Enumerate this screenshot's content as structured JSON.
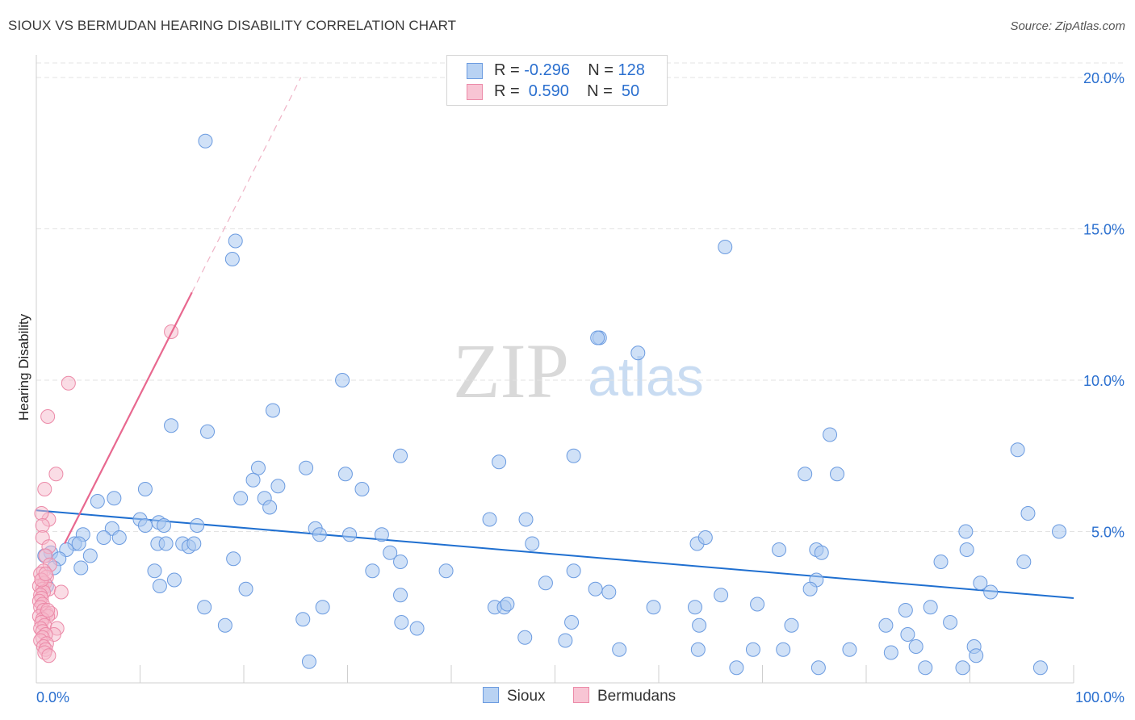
{
  "title": "SIOUX VS BERMUDAN HEARING DISABILITY CORRELATION CHART",
  "source": "Source: ZipAtlas.com",
  "watermark": {
    "zip": "ZIP",
    "atlas": "atlas"
  },
  "legend": {
    "rows": [
      {
        "r_label": "R =",
        "r_value": "-0.296",
        "n_label": "N =",
        "n_value": "128"
      },
      {
        "r_label": "R =",
        "r_value": " 0.590",
        "n_label": "N =",
        "n_value": " 50"
      }
    ]
  },
  "bottom_legend": {
    "sioux": "Sioux",
    "bermudans": "Bermudans"
  },
  "colors": {
    "sioux_fill": "#aac8f0",
    "sioux_stroke": "#6b9be0",
    "sioux_line": "#1f6fd0",
    "bermudans_fill": "#f6b9cb",
    "bermudans_stroke": "#ec8aa8",
    "bermudans_line": "#e8688f",
    "axis_text": "#2a6fcf"
  },
  "chart_data": {
    "type": "scatter",
    "title": "SIOUX VS BERMUDAN HEARING DISABILITY CORRELATION CHART",
    "xlabel": "",
    "ylabel": "Hearing Disability",
    "xlim": [
      0,
      100
    ],
    "ylim": [
      0,
      20
    ],
    "x_tick_labels": [
      "0.0%",
      "100.0%"
    ],
    "y_ticks": [
      5,
      10,
      15,
      20
    ],
    "y_tick_labels": [
      "5.0%",
      "10.0%",
      "15.0%",
      "20.0%"
    ],
    "grid": true,
    "series": [
      {
        "name": "Sioux",
        "r": -0.296,
        "n": 128,
        "trendline": {
          "x": [
            0,
            100
          ],
          "y": [
            5.7,
            2.8
          ]
        },
        "points": [
          [
            16.3,
            17.9
          ],
          [
            19.2,
            14.6
          ],
          [
            18.9,
            14.0
          ],
          [
            66.4,
            14.4
          ],
          [
            54.3,
            11.4
          ],
          [
            54.1,
            11.4
          ],
          [
            54.3,
            11.4
          ],
          [
            54.3,
            11.4
          ],
          [
            54.2,
            11.4
          ],
          [
            54.3,
            11.5
          ],
          [
            54.3,
            11.4
          ],
          [
            54.3,
            11.4
          ],
          [
            54.3,
            11.4
          ],
          [
            54.3,
            11.4
          ],
          [
            54.3,
            11.4
          ],
          [
            54.3,
            11.4
          ],
          [
            54.3,
            11.4
          ],
          [
            54.3,
            11.4
          ],
          [
            54.3,
            11.4
          ],
          [
            54.3,
            11.4
          ],
          [
            54.3,
            11.4
          ],
          [
            54.3,
            11.4
          ],
          [
            54.3,
            11.4
          ],
          [
            54.3,
            11.4
          ],
          [
            54.3,
            11.4
          ],
          [
            54.3,
            11.4
          ],
          [
            54.3,
            11.4
          ],
          [
            54.3,
            11.4
          ],
          [
            54.3,
            11.4
          ],
          [
            54.3,
            11.4
          ],
          [
            54.3,
            11.4
          ],
          [
            54.3,
            11.4
          ],
          [
            54.3,
            11.4
          ],
          [
            54.3,
            11.4
          ],
          [
            54.3,
            11.4
          ],
          [
            54.3,
            11.4
          ],
          [
            54.3,
            11.4
          ],
          [
            54.3,
            11.4
          ],
          [
            54.3,
            11.4
          ],
          [
            54.3,
            11.4
          ],
          [
            54.3,
            11.4
          ],
          [
            54.3,
            11.4
          ],
          [
            54.3,
            11.4
          ],
          [
            54.3,
            11.4
          ],
          [
            54.3,
            11.4
          ],
          [
            54.3,
            11.4
          ],
          [
            54.3,
            11.4
          ],
          [
            54.3,
            11.4
          ],
          [
            54.3,
            11.4
          ],
          [
            54.3,
            11.4
          ],
          [
            54.3,
            11.4
          ],
          [
            54.3,
            11.4
          ],
          [
            54.3,
            11.4
          ],
          [
            54.3,
            11.4
          ],
          [
            54.3,
            11.4
          ],
          [
            54.3,
            11.4
          ],
          [
            54.3,
            11.4
          ],
          [
            54.3,
            11.4
          ],
          [
            54.3,
            11.4
          ],
          [
            54.3,
            11.4
          ],
          [
            54.3,
            11.4
          ],
          [
            54.3,
            11.4
          ],
          [
            54.3,
            11.4
          ],
          [
            54.3,
            11.4
          ],
          [
            54.3,
            11.4
          ],
          [
            54.3,
            11.4
          ],
          [
            54.3,
            11.4
          ],
          [
            54.3,
            11.4
          ],
          [
            54.3,
            11.4
          ],
          [
            54.3,
            11.4
          ],
          [
            54.3,
            11.4
          ],
          [
            54.3,
            11.4
          ],
          [
            54.3,
            11.4
          ],
          [
            54.3,
            11.4
          ],
          [
            54.3,
            11.4
          ],
          [
            54.3,
            11.4
          ],
          [
            54.3,
            11.4
          ],
          [
            54.3,
            11.4
          ],
          [
            54.3,
            11.4
          ],
          [
            54.3,
            11.4
          ],
          [
            54.3,
            11.4
          ],
          [
            54.3,
            11.4
          ],
          [
            54.3,
            11.4
          ],
          [
            54.3,
            11.4
          ],
          [
            54.3,
            11.4
          ],
          [
            54.3,
            11.4
          ],
          [
            54.3,
            11.4
          ],
          [
            54.3,
            11.4
          ],
          [
            54.3,
            11.4
          ],
          [
            54.3,
            11.4
          ]
        ]
      },
      {
        "name": "Bermudans",
        "r": 0.59,
        "n": 50,
        "trendline": {
          "x": [
            0,
            15
          ],
          "y": [
            3.0,
            12.9
          ],
          "dashed_extension_to": [
            25.5,
            20.0
          ]
        },
        "points": []
      }
    ]
  }
}
